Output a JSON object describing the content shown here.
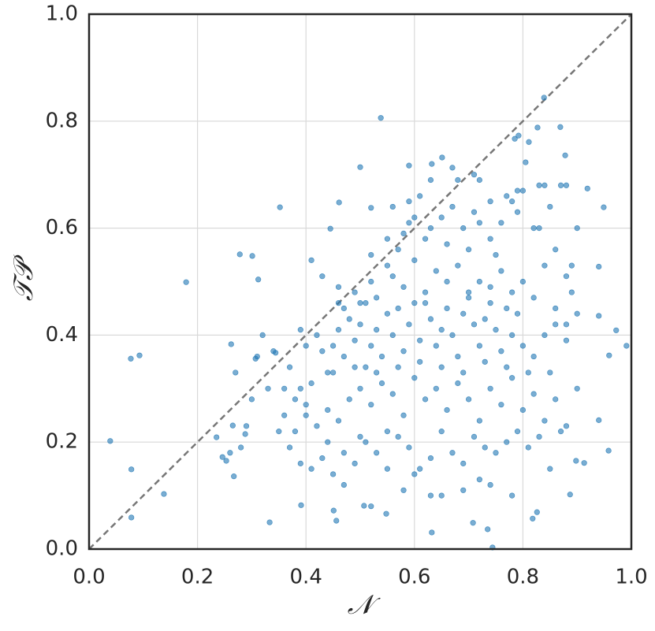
{
  "chart_data": {
    "type": "scatter",
    "xlabel": "𝒩",
    "ylabel": "𝒯𝒫",
    "xlim": [
      0,
      1
    ],
    "ylim": [
      0,
      1
    ],
    "xticks": [
      {
        "value": 0,
        "label": "0.0"
      },
      0.2,
      0.4,
      0.6,
      0.8,
      {
        "value": 1,
        "label": "1.0"
      }
    ],
    "yticks": [
      {
        "value": 0,
        "label": "0.0"
      },
      0.2,
      0.4,
      0.6,
      0.8,
      {
        "value": 1,
        "label": "1.0"
      }
    ],
    "grid": true,
    "diagonal": true,
    "series": [
      {
        "color": "#1f77b4",
        "x": [
          0.039,
          0.078,
          0.078,
          0.077,
          0.093,
          0.138,
          0.179,
          0.235,
          0.262,
          0.278,
          0.301,
          0.312,
          0.352,
          0.333,
          0.538,
          0.5,
          0.461,
          0.445,
          0.52,
          0.839,
          0.827,
          0.869,
          0.792,
          0.785,
          0.811,
          0.59,
          0.632,
          0.651,
          0.67,
          0.805,
          0.878,
          0.949,
          0.919,
          0.972,
          0.991,
          0.94,
          0.94,
          0.959,
          0.958,
          0.94,
          0.898,
          0.913,
          0.887,
          0.826,
          0.818,
          0.744,
          0.632,
          0.708,
          0.735,
          0.548,
          0.507,
          0.451,
          0.456,
          0.391,
          0.253,
          0.267,
          0.246,
          0.265,
          0.288,
          0.307,
          0.344,
          0.38,
          0.39,
          0.4,
          0.41,
          0.39,
          0.4,
          0.42,
          0.43,
          0.44,
          0.45,
          0.46,
          0.47,
          0.48,
          0.49,
          0.5,
          0.51,
          0.52,
          0.53,
          0.54,
          0.55,
          0.56,
          0.57,
          0.58,
          0.59,
          0.6,
          0.61,
          0.62,
          0.63,
          0.64,
          0.65,
          0.66,
          0.67,
          0.68,
          0.69,
          0.7,
          0.71,
          0.72,
          0.73,
          0.74,
          0.75,
          0.76,
          0.77,
          0.78,
          0.79,
          0.8,
          0.82,
          0.84,
          0.86,
          0.88,
          0.9,
          0.46,
          0.49,
          0.52,
          0.55,
          0.57,
          0.58,
          0.59,
          0.6,
          0.62,
          0.63,
          0.65,
          0.66,
          0.67,
          0.69,
          0.7,
          0.71,
          0.72,
          0.74,
          0.75,
          0.76,
          0.78,
          0.79,
          0.8,
          0.82,
          0.83,
          0.85,
          0.86,
          0.87,
          0.88,
          0.89,
          0.9,
          0.56,
          0.6,
          0.64,
          0.68,
          0.72,
          0.76,
          0.8,
          0.84,
          0.53,
          0.58,
          0.62,
          0.66,
          0.7,
          0.74,
          0.78,
          0.82,
          0.47,
          0.51,
          0.86,
          0.88,
          0.89,
          0.36,
          0.38,
          0.4,
          0.42,
          0.44,
          0.46,
          0.48,
          0.5,
          0.52,
          0.54,
          0.56,
          0.58,
          0.6,
          0.62,
          0.64,
          0.66,
          0.68,
          0.7,
          0.72,
          0.74,
          0.76,
          0.78,
          0.8,
          0.82,
          0.84,
          0.86,
          0.88,
          0.9,
          0.45,
          0.49,
          0.53,
          0.57,
          0.61,
          0.65,
          0.69,
          0.73,
          0.77,
          0.81,
          0.85,
          0.37,
          0.39,
          0.41,
          0.43,
          0.45,
          0.47,
          0.49,
          0.51,
          0.53,
          0.55,
          0.57,
          0.59,
          0.61,
          0.63,
          0.65,
          0.67,
          0.69,
          0.71,
          0.73,
          0.75,
          0.77,
          0.79,
          0.81,
          0.83,
          0.85,
          0.87,
          0.6,
          0.63,
          0.65,
          0.69,
          0.72,
          0.74,
          0.78,
          0.47,
          0.52,
          0.58,
          0.55,
          0.5,
          0.44,
          0.35,
          0.33,
          0.36,
          0.3,
          0.29,
          0.28,
          0.26,
          0.27,
          0.31,
          0.34,
          0.37,
          0.32,
          0.41,
          0.43,
          0.46,
          0.5,
          0.52,
          0.55,
          0.56,
          0.59,
          0.61,
          0.63,
          0.68,
          0.71,
          0.72,
          0.74,
          0.77,
          0.79,
          0.83,
          0.84,
          0.88
        ],
        "values": [
          0.202,
          0.149,
          0.059,
          0.356,
          0.362,
          0.103,
          0.499,
          0.209,
          0.383,
          0.551,
          0.548,
          0.504,
          0.639,
          0.05,
          0.806,
          0.714,
          0.648,
          0.599,
          0.638,
          0.844,
          0.788,
          0.789,
          0.773,
          0.767,
          0.761,
          0.717,
          0.72,
          0.732,
          0.713,
          0.723,
          0.736,
          0.639,
          0.674,
          0.409,
          0.38,
          0.528,
          0.436,
          0.362,
          0.184,
          0.241,
          0.165,
          0.161,
          0.102,
          0.069,
          0.057,
          0.003,
          0.031,
          0.049,
          0.037,
          0.066,
          0.081,
          0.072,
          0.053,
          0.082,
          0.165,
          0.136,
          0.172,
          0.231,
          0.215,
          0.356,
          0.367,
          0.28,
          0.3,
          0.27,
          0.31,
          0.41,
          0.38,
          0.4,
          0.37,
          0.33,
          0.38,
          0.41,
          0.36,
          0.43,
          0.39,
          0.42,
          0.34,
          0.38,
          0.41,
          0.36,
          0.44,
          0.4,
          0.45,
          0.37,
          0.42,
          0.46,
          0.39,
          0.48,
          0.43,
          0.38,
          0.41,
          0.45,
          0.4,
          0.36,
          0.44,
          0.47,
          0.42,
          0.38,
          0.43,
          0.49,
          0.41,
          0.37,
          0.45,
          0.4,
          0.44,
          0.38,
          0.36,
          0.4,
          0.42,
          0.39,
          0.44,
          0.49,
          0.48,
          0.5,
          0.53,
          0.56,
          0.59,
          0.61,
          0.62,
          0.58,
          0.6,
          0.62,
          0.57,
          0.64,
          0.6,
          0.56,
          0.63,
          0.61,
          0.58,
          0.55,
          0.61,
          0.65,
          0.63,
          0.67,
          0.6,
          0.68,
          0.64,
          0.56,
          0.68,
          0.51,
          0.53,
          0.6,
          0.51,
          0.54,
          0.52,
          0.53,
          0.5,
          0.52,
          0.5,
          0.53,
          0.47,
          0.49,
          0.46,
          0.5,
          0.48,
          0.46,
          0.48,
          0.47,
          0.45,
          0.46,
          0.45,
          0.42,
          0.48,
          0.25,
          0.22,
          0.25,
          0.23,
          0.26,
          0.24,
          0.28,
          0.3,
          0.27,
          0.31,
          0.29,
          0.25,
          0.32,
          0.28,
          0.3,
          0.26,
          0.31,
          0.28,
          0.24,
          0.3,
          0.27,
          0.32,
          0.26,
          0.29,
          0.24,
          0.28,
          0.23,
          0.3,
          0.33,
          0.34,
          0.33,
          0.34,
          0.35,
          0.34,
          0.33,
          0.35,
          0.34,
          0.33,
          0.33,
          0.19,
          0.16,
          0.15,
          0.17,
          0.14,
          0.18,
          0.16,
          0.2,
          0.18,
          0.15,
          0.21,
          0.19,
          0.15,
          0.17,
          0.22,
          0.18,
          0.16,
          0.21,
          0.19,
          0.18,
          0.2,
          0.22,
          0.19,
          0.21,
          0.15,
          0.22,
          0.14,
          0.1,
          0.1,
          0.11,
          0.13,
          0.12,
          0.1,
          0.12,
          0.08,
          0.11,
          0.22,
          0.21,
          0.2,
          0.22,
          0.3,
          0.3,
          0.28,
          0.23,
          0.19,
          0.18,
          0.33,
          0.36,
          0.37,
          0.34,
          0.4,
          0.54,
          0.51,
          0.46,
          0.46,
          0.55,
          0.58,
          0.64,
          0.65,
          0.66,
          0.69,
          0.69,
          0.7,
          0.69,
          0.65,
          0.66,
          0.67,
          0.6,
          0.68,
          0.68
        ]
      }
    ]
  }
}
